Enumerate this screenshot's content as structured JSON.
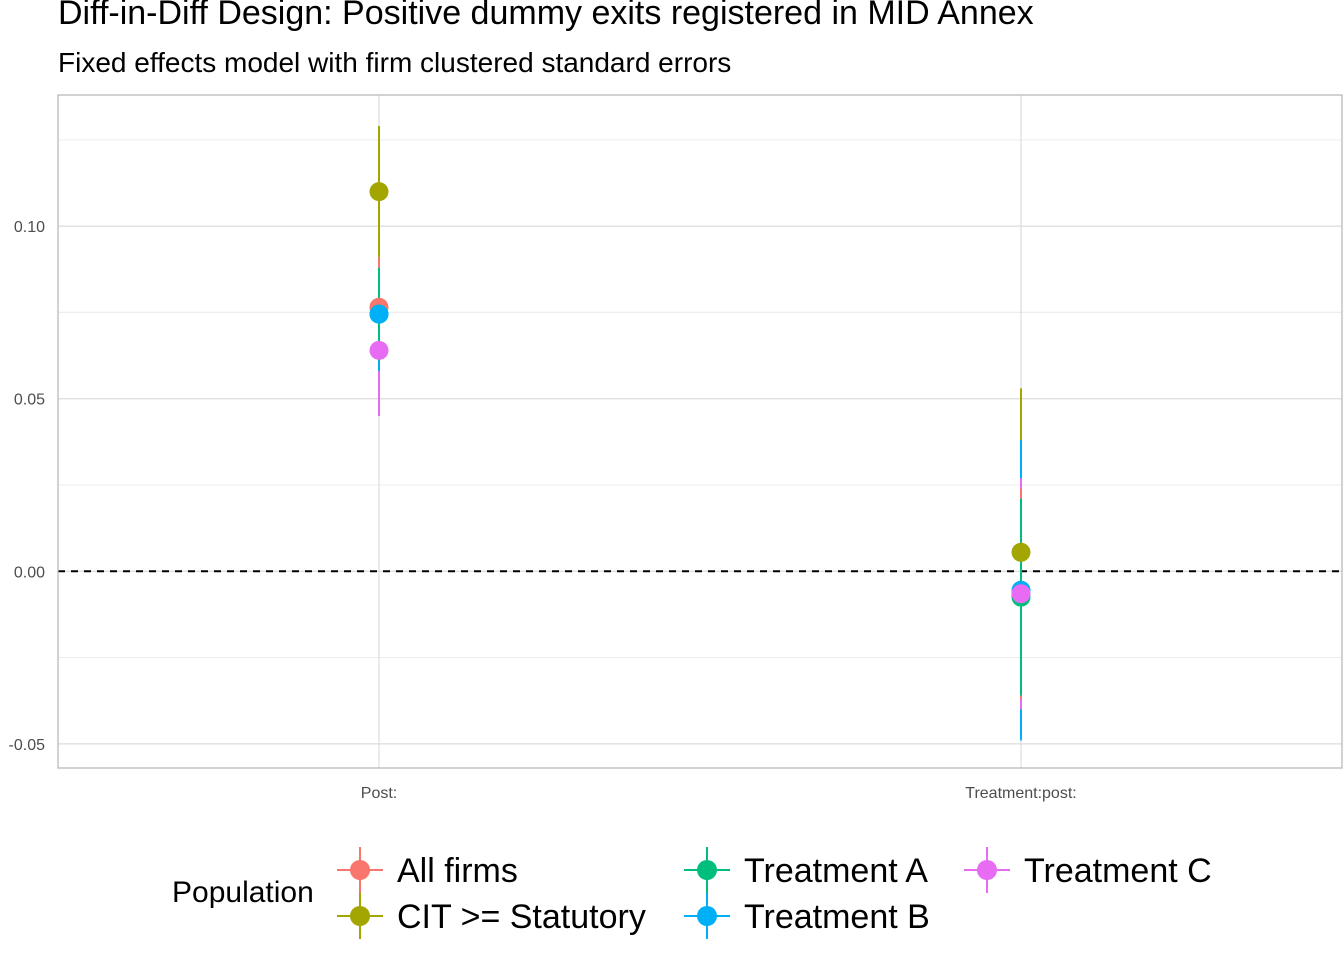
{
  "chart_data": {
    "type": "scatter",
    "title": "Diff-in-Diff Design: Positive dummy exits registered in MID Annex",
    "subtitle": "Fixed effects model with firm clustered standard errors",
    "xlabel": "",
    "ylabel": "",
    "categories": [
      "Post:",
      "Treatment:post:"
    ],
    "ylim": [
      -0.057,
      0.138
    ],
    "yticks": [
      -0.05,
      0.0,
      0.05,
      0.1
    ],
    "ytick_labels": [
      "-0.05",
      "0.00",
      "0.05",
      "0.10"
    ],
    "reference_line": 0,
    "grid": true,
    "legend": {
      "title": "Population",
      "placement": "bottom"
    },
    "series": [
      {
        "name": "All firms",
        "color": "#F8766D",
        "values": [
          0.0765,
          -0.0065
        ],
        "lower": [
          0.062,
          -0.037
        ],
        "upper": [
          0.091,
          0.024
        ]
      },
      {
        "name": "CIT >= Statutory",
        "color": "#A3A500",
        "values": [
          0.11,
          0.0055
        ],
        "lower": [
          0.091,
          -0.042
        ],
        "upper": [
          0.129,
          0.053
        ]
      },
      {
        "name": "Treatment A",
        "color": "#00BF7D",
        "values": [
          0.0745,
          -0.0075
        ],
        "lower": [
          0.061,
          -0.036
        ],
        "upper": [
          0.088,
          0.021
        ]
      },
      {
        "name": "Treatment B",
        "color": "#00B0F6",
        "values": [
          0.0745,
          -0.0055
        ],
        "lower": [
          0.058,
          -0.049
        ],
        "upper": [
          0.091,
          0.038
        ]
      },
      {
        "name": "Treatment C",
        "color": "#E76BF3",
        "values": [
          0.064,
          -0.0065
        ],
        "lower": [
          0.045,
          -0.04
        ],
        "upper": [
          0.083,
          0.027
        ]
      }
    ]
  }
}
